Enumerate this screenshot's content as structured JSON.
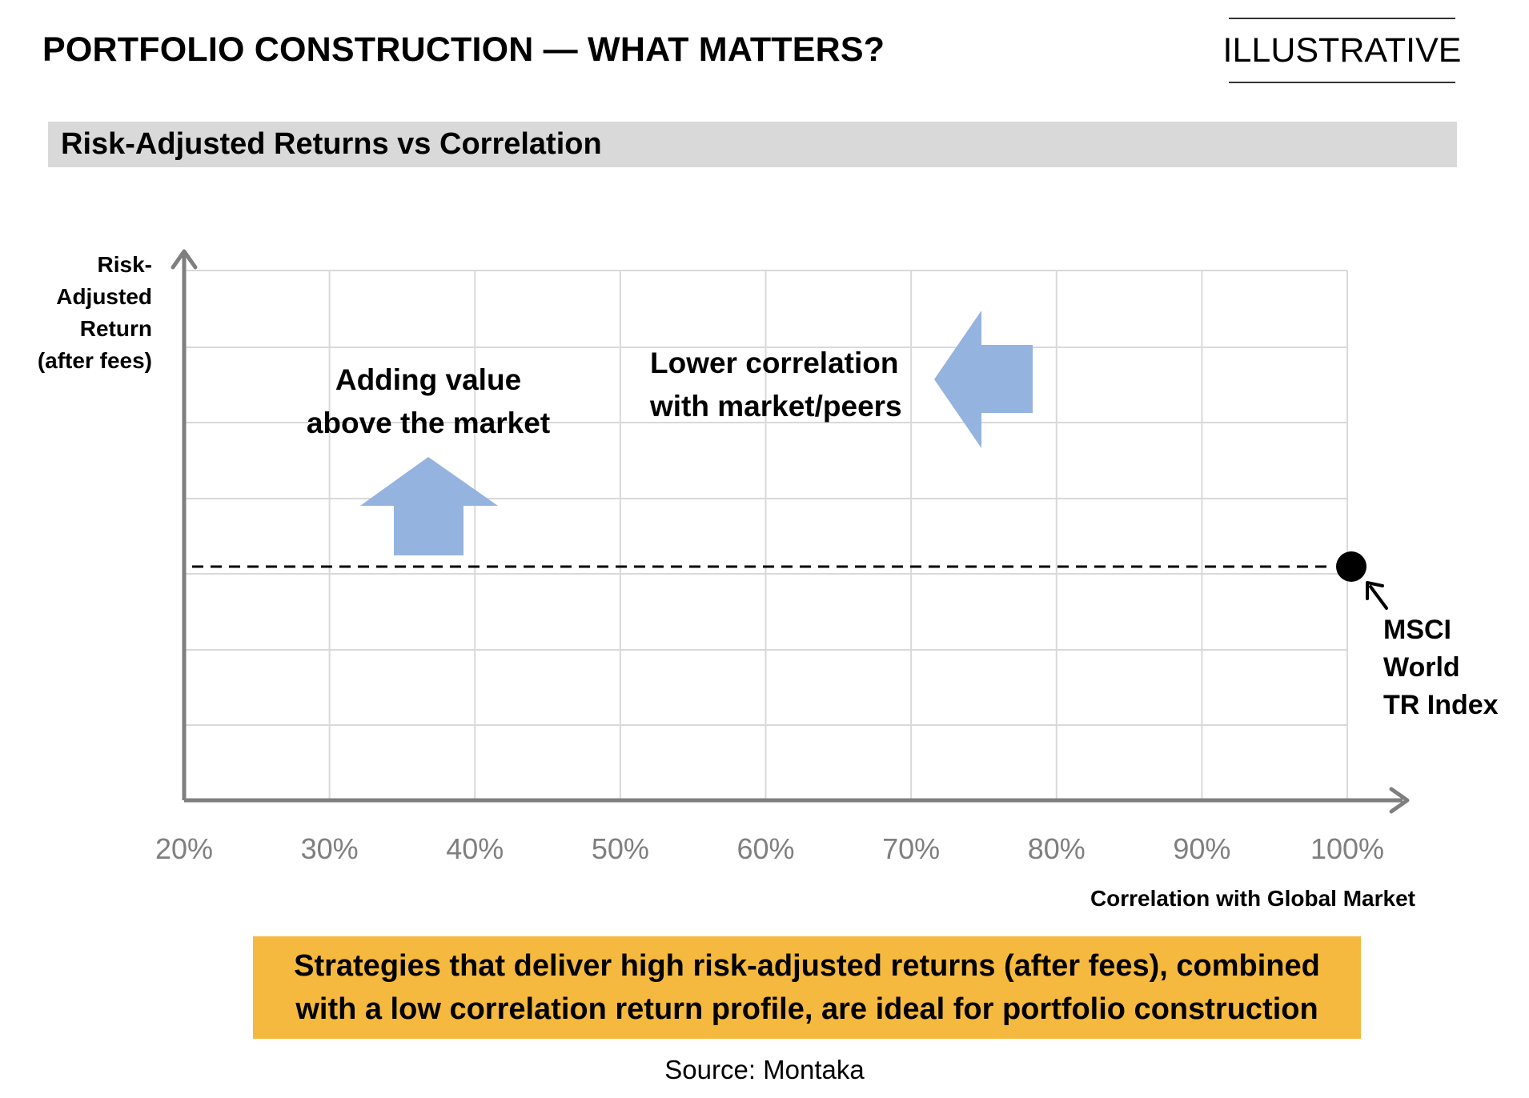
{
  "header": {
    "title": "PORTFOLIO CONSTRUCTION — WHAT MATTERS?",
    "tag": "ILLUSTRATIVE"
  },
  "subheader": {
    "title": "Risk-Adjusted Returns vs Correlation"
  },
  "chart_data": {
    "type": "scatter",
    "x_ticks": [
      "20%",
      "30%",
      "40%",
      "50%",
      "60%",
      "70%",
      "80%",
      "90%",
      "100%"
    ],
    "xlim": [
      20,
      100
    ],
    "xlabel": "Correlation with Global Market",
    "ylabel_lines": [
      "Risk-",
      "Adjusted",
      "Return",
      "(after fees)"
    ],
    "grid": true,
    "points": [
      {
        "name": "MSCI World TR Index",
        "x": 100,
        "label_lines": [
          "MSCI",
          "World",
          "TR Index"
        ]
      }
    ],
    "reference_line": {
      "style": "dashed",
      "through": "MSCI World TR Index"
    },
    "annotations": [
      {
        "lines": [
          "Adding value",
          "above the market"
        ],
        "arrow": "up"
      },
      {
        "lines": [
          "Lower correlation",
          "with market/peers"
        ],
        "arrow": "left"
      }
    ]
  },
  "callout": {
    "lines": [
      "Strategies that deliver high risk-adjusted  returns (after fees), combined",
      "with a low correlation  return profile, are ideal for portfolio  construction"
    ]
  },
  "footer": {
    "source": "Source: Montaka"
  },
  "colors": {
    "arrow_fill": "#95b3df",
    "callout_bg": "#f4b93e",
    "subheader_bg": "#d9d9d9",
    "axis": "#7f7f7f",
    "grid": "#d9d9d9"
  }
}
